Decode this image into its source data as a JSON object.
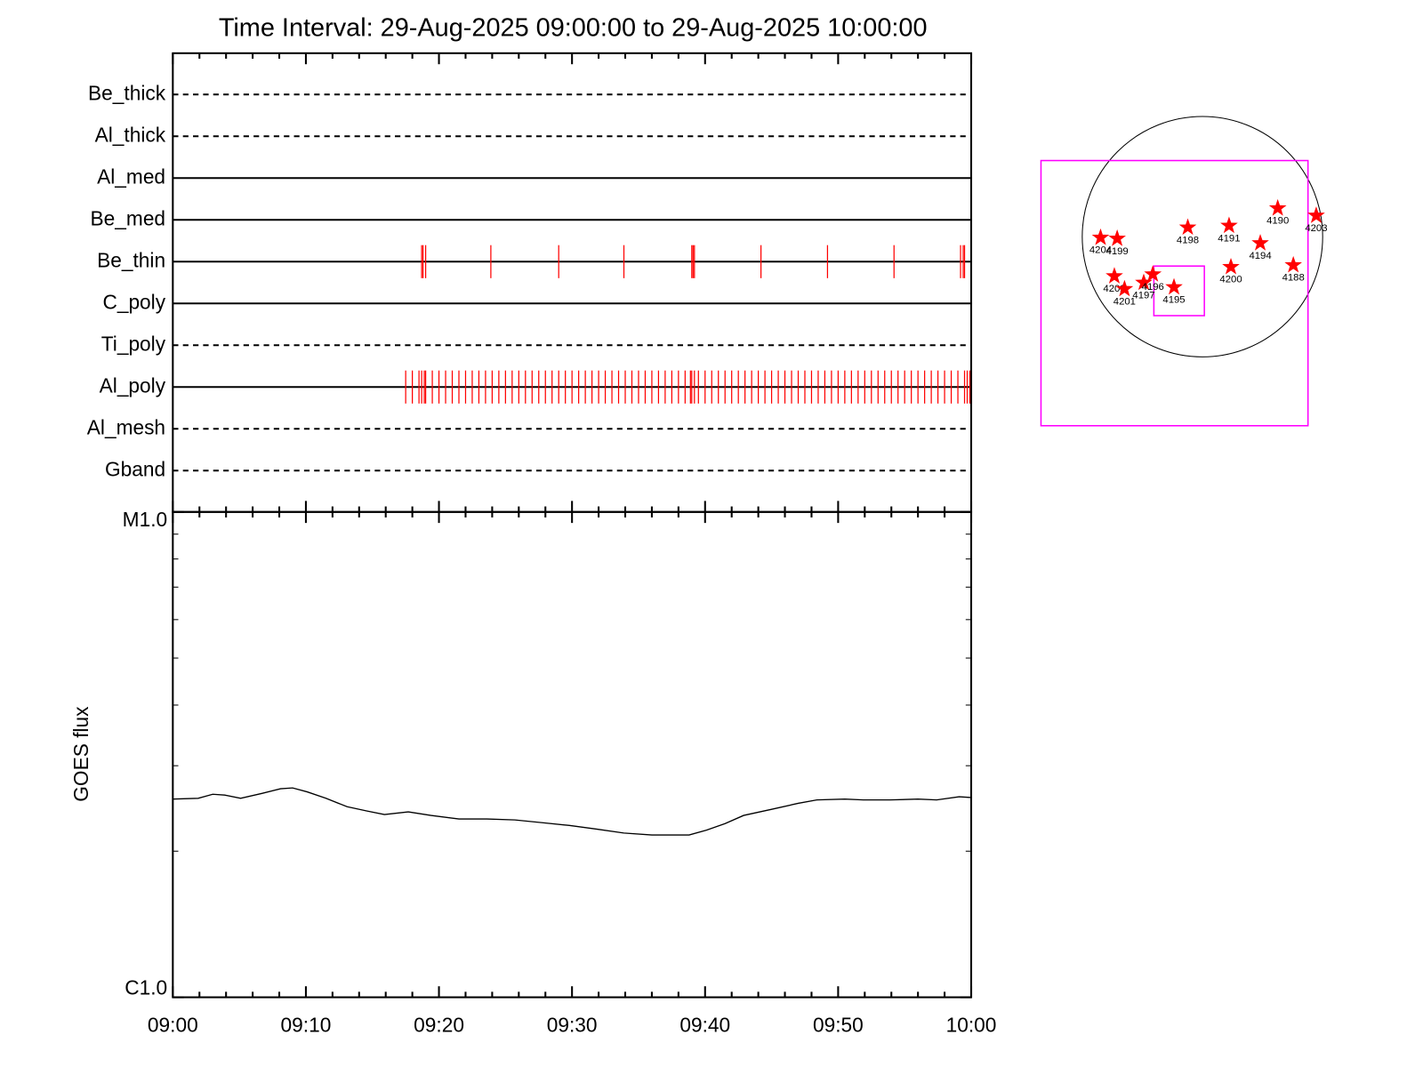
{
  "chart_data": [
    {
      "type": "event",
      "title": "Time Interval: 29-Aug-2025 09:00:00 to 29-Aug-2025 10:00:00",
      "categories": [
        "Be_thick",
        "Al_thick",
        "Al_med",
        "Be_med",
        "Be_thin",
        "C_poly",
        "Ti_poly",
        "Al_poly",
        "Al_mesh",
        "Gband"
      ],
      "line_styles": [
        "dashed",
        "dashed",
        "solid",
        "solid",
        "solid",
        "solid",
        "dashed",
        "solid",
        "dashed",
        "dashed"
      ],
      "xlim": [
        0,
        60
      ],
      "series": [
        {
          "name": "Be_thin",
          "color": "#ff0000",
          "x": [
            18.7,
            18.8,
            19.0,
            23.9,
            29.0,
            33.9,
            39.0,
            39.1,
            39.2,
            44.2,
            49.2,
            54.2,
            59.2,
            59.4,
            59.5
          ]
        },
        {
          "name": "Al_poly",
          "color": "#ff0000",
          "x": [
            17.5,
            18,
            18.5,
            18.7,
            18.9,
            19,
            19.5,
            20,
            20.5,
            21,
            21.5,
            22,
            22.5,
            23,
            23.5,
            24,
            24.5,
            25,
            25.5,
            26,
            26.5,
            27,
            27.5,
            28,
            28.5,
            29,
            29.5,
            30,
            30.5,
            31,
            31.5,
            32,
            32.5,
            33,
            33.5,
            34,
            34.5,
            35,
            35.5,
            36,
            36.5,
            37,
            37.5,
            38,
            38.5,
            38.9,
            39,
            39.2,
            39.5,
            40,
            40.5,
            41,
            41.5,
            42,
            42.5,
            43,
            43.5,
            44,
            44.5,
            45,
            45.5,
            46,
            46.5,
            47,
            47.5,
            48,
            48.5,
            49,
            49.5,
            50,
            50.5,
            51,
            51.5,
            52,
            52.5,
            53,
            53.5,
            54,
            54.5,
            55,
            55.5,
            56,
            56.5,
            57,
            57.5,
            58,
            58.5,
            59,
            59.5,
            59.7,
            59.9
          ]
        }
      ]
    },
    {
      "type": "line",
      "ylabel": "GOES flux",
      "ylog": true,
      "color": "#000000",
      "xlim": [
        0,
        60
      ],
      "xticks": [
        {
          "value": 0,
          "label": "09:00"
        },
        {
          "value": 10,
          "label": "09:10"
        },
        {
          "value": 20,
          "label": "09:20"
        },
        {
          "value": 30,
          "label": "09:30"
        },
        {
          "value": 40,
          "label": "09:40"
        },
        {
          "value": 50,
          "label": "09:50"
        },
        {
          "value": 60,
          "label": "10:00"
        }
      ],
      "xminorticks": [
        2,
        4,
        6,
        8,
        12,
        14,
        16,
        18,
        22,
        24,
        26,
        28,
        32,
        34,
        36,
        38,
        42,
        44,
        46,
        48,
        52,
        54,
        56,
        58
      ],
      "ylim": [
        1e-06,
        1e-05
      ],
      "yticks": [
        {
          "value": 1e-06,
          "label": "C1.0"
        },
        {
          "value": 1e-05,
          "label": "M1.0"
        }
      ],
      "yminorticks": [
        2e-06,
        3e-06,
        4e-06,
        5e-06,
        6e-06,
        7e-06,
        8e-06,
        9e-06
      ],
      "x": [
        0,
        1.9,
        3.0,
        3.9,
        5.1,
        6.7,
        8.1,
        9.0,
        10.1,
        11.5,
        13.1,
        14.6,
        15.9,
        17.7,
        19.4,
        21.5,
        23.6,
        25.7,
        27.7,
        29.8,
        31.9,
        33.9,
        36.0,
        38.8,
        40.1,
        41.5,
        42.9,
        45.0,
        47.0,
        48.4,
        50.5,
        51.9,
        53.9,
        56.0,
        57.4,
        59.1,
        60
      ],
      "values": [
        2.56e-06,
        2.57e-06,
        2.62e-06,
        2.61e-06,
        2.57e-06,
        2.63e-06,
        2.69e-06,
        2.7e-06,
        2.65e-06,
        2.57e-06,
        2.47e-06,
        2.42e-06,
        2.38e-06,
        2.41e-06,
        2.37e-06,
        2.33e-06,
        2.33e-06,
        2.32e-06,
        2.29e-06,
        2.26e-06,
        2.22e-06,
        2.18e-06,
        2.16e-06,
        2.16e-06,
        2.21e-06,
        2.28e-06,
        2.37e-06,
        2.44e-06,
        2.51e-06,
        2.55e-06,
        2.56e-06,
        2.55e-06,
        2.55e-06,
        2.56e-06,
        2.55e-06,
        2.59e-06,
        2.58e-06
      ]
    },
    {
      "type": "map",
      "disk_radius": 950,
      "color": "#ff0000",
      "labels": [
        "4204",
        "4199",
        "4198",
        "4191",
        "4190",
        "4203",
        "4194",
        "4188",
        "4200",
        "4202",
        "4201",
        "4197",
        "4196",
        "4195"
      ],
      "x": [
        -805,
        -674,
        -116,
        210,
        595,
        899,
        457,
        718,
        225,
        -696,
        -616,
        -464,
        -392,
        -225
      ],
      "y": [
        -7,
        -15,
        73,
        87,
        225,
        167,
        -51,
        -225,
        -239,
        -312,
        -413,
        -363,
        -297,
        -399
      ],
      "boxes": [
        {
          "color": "#ff00ff",
          "x": [
            -1276,
            834
          ],
          "y": [
            602,
            -1494
          ]
        },
        {
          "color": "#ff00ff",
          "x": [
            -384,
            15
          ],
          "y": [
            -232,
            -624
          ]
        }
      ]
    }
  ]
}
